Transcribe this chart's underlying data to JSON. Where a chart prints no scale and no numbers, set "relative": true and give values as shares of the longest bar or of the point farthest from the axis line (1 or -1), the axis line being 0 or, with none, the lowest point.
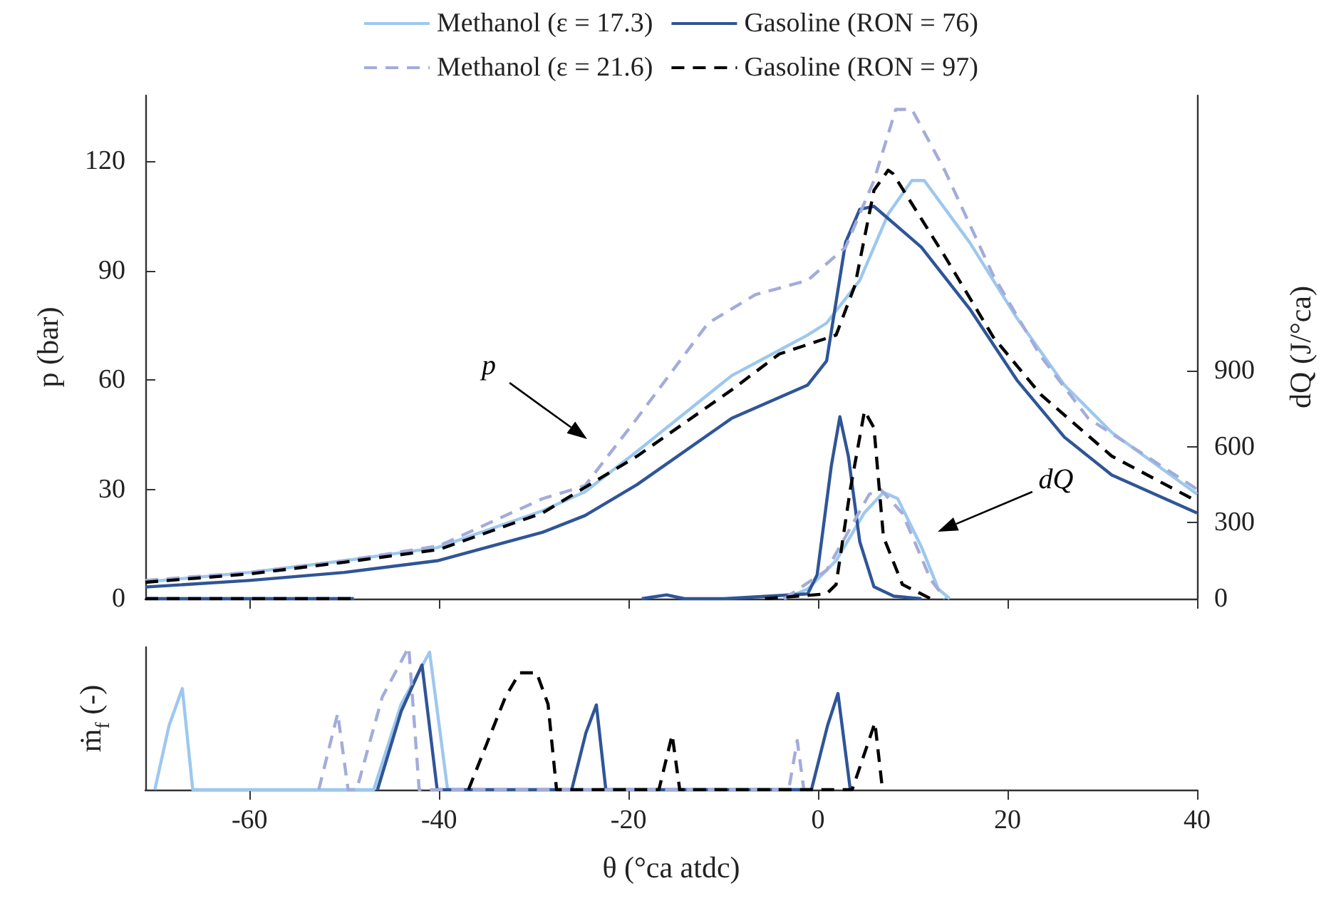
{
  "chart_data": [
    {
      "type": "line",
      "ylabel": "p (bar)",
      "y2label": "dQ (J/°ca)",
      "xlim": [
        -71,
        40
      ],
      "xticks": [
        -60,
        -40,
        -20,
        0,
        20,
        40
      ],
      "ylim": [
        0,
        138
      ],
      "yticks": [
        0,
        30,
        60,
        90,
        120
      ],
      "y2lim": [
        0,
        1986
      ],
      "y2ticks": [
        0,
        300,
        600,
        900
      ],
      "tick_labels": "y",
      "grid": false,
      "legend": "top",
      "marker": "none",
      "annotations": [
        "p",
        "dQ"
      ],
      "series": [
        {
          "name": "Methanol (ε = 17.3)",
          "color": "#9dc8ee",
          "line_style": "solid",
          "x": [
            -71,
            -60,
            -50,
            -40.2,
            -29.1,
            -24.6,
            -19.1,
            -9.1,
            -1.1,
            0.9,
            4.4,
            7.4,
            9.9,
            11.2,
            16,
            21,
            26,
            31,
            40
          ],
          "values": [
            4.6,
            7.2,
            10.4,
            14,
            24.1,
            29.3,
            40.4,
            61.2,
            72.3,
            75.6,
            87.3,
            105.5,
            114.7,
            114.7,
            97.7,
            76.9,
            58.6,
            45.6,
            28.7
          ]
        },
        {
          "name": "Gasoline (RON = 76)",
          "color": "#2f5597",
          "line_style": "solid",
          "x": [
            -71,
            -60,
            -50,
            -40.2,
            -29.1,
            -24.6,
            -19.1,
            -9.1,
            -1.1,
            0.9,
            2.9,
            4.4,
            5.9,
            10.9,
            16,
            21,
            26,
            31,
            40
          ],
          "values": [
            3.2,
            5,
            7.2,
            10.4,
            18.2,
            22.8,
            31.3,
            49.5,
            58.6,
            65.2,
            97.7,
            106.8,
            107.6,
            96.4,
            79.5,
            59.9,
            44.3,
            33.9,
            23.5
          ]
        },
        {
          "name": "Methanol (ε = 21.6)",
          "color": "#a3acd9",
          "line_style": "dashed",
          "x": [
            -71,
            -60,
            -50,
            -40,
            -29.1,
            -24.6,
            -19.1,
            -11.6,
            -6.6,
            -1.1,
            2.9,
            5.9,
            8.2,
            9.9,
            13.4,
            18.5,
            23.5,
            28.5,
            40
          ],
          "values": [
            5,
            7.2,
            10.4,
            14.5,
            27.4,
            31,
            49.5,
            75.6,
            83.4,
            87.3,
            96.4,
            114.7,
            134.2,
            134.2,
            117.3,
            88.6,
            66.5,
            49.5,
            30
          ]
        },
        {
          "name": "Gasoline (RON = 97)",
          "color": "#000000",
          "line_style": "dashed",
          "x": [
            -71,
            -60,
            -50,
            -40,
            -29.1,
            -19.1,
            -9.1,
            -4.1,
            1.9,
            3.9,
            5.9,
            7.4,
            7.9,
            13.4,
            18.5,
            23.5,
            31,
            40
          ],
          "values": [
            4.5,
            6.8,
            10,
            13.5,
            23.5,
            39.1,
            57.3,
            67.1,
            72.3,
            86,
            112,
            117.5,
            116.6,
            93.8,
            71.7,
            56,
            39.1,
            26.7
          ]
        },
        {
          "color": "#9dc8ee",
          "line_style": "solid",
          "axis": "y2",
          "x": [
            -71,
            -49,
            -30,
            -3.6,
            -1.1,
            1.9,
            4.9,
            6.9,
            8.4,
            10.9,
            12.7,
            13.9
          ],
          "values": [
            0,
            0,
            null,
            0,
            38,
            150,
            340,
            420,
            395,
            205,
            38,
            0
          ]
        },
        {
          "color": "#2f5597",
          "line_style": "solid",
          "axis": "y2",
          "x": [
            -71,
            -49,
            -30,
            -18.6,
            -16,
            -14.1,
            -10,
            -1.1,
            -0.1,
            1.4,
            2.3,
            3.2,
            4.4,
            5.9,
            8,
            10.9
          ],
          "values": [
            0,
            0,
            null,
            0,
            15,
            0,
            0,
            19,
            94,
            525,
            718,
            562,
            225,
            47,
            10,
            0
          ]
        },
        {
          "color": "#a3acd9",
          "line_style": "dashed",
          "axis": "y2",
          "x": [
            -71,
            -49,
            -30,
            -3.6,
            0.9,
            5.4,
            6.6,
            8.9,
            11.9,
            13.4
          ],
          "values": [
            0,
            0,
            null,
            0,
            112,
            412,
            431,
            337,
            75,
            0
          ]
        },
        {
          "color": "#000000",
          "line_style": "dashed",
          "axis": "y2",
          "x": [
            -71,
            -49,
            -30,
            -5.6,
            0.9,
            1.9,
            3.4,
            4.9,
            5.9,
            6.9,
            8.9,
            11.9
          ],
          "values": [
            0,
            0,
            null,
            0,
            19,
            56,
            431,
            741,
            675,
            244,
            56,
            0
          ]
        }
      ]
    },
    {
      "type": "line",
      "relative": true,
      "xlabel": "θ (°ca atdc)",
      "ylabel": "ṁ$_{f}$ (-)",
      "xlim": [
        -71,
        40
      ],
      "xticks": [
        -60,
        -40,
        -20,
        0,
        20,
        40
      ],
      "tick_labels": "x",
      "grid": false,
      "legend": false,
      "marker": "none",
      "series": [
        {
          "color": "#9dc8ee",
          "line_style": "solid",
          "x": [
            -70,
            -68.5,
            -67.1,
            -66,
            -46.9,
            -44,
            -41,
            -39.1,
            -2
          ],
          "values": [
            0,
            0.45,
            0.71,
            0,
            0,
            0.6,
            0.965,
            0,
            0
          ]
        },
        {
          "color": "#2f5597",
          "line_style": "solid",
          "x": [
            -46.5,
            -44,
            -41.8,
            -40.2,
            -26,
            -24.5,
            -23.4,
            -22.4,
            -0.7,
            1,
            2.1,
            3.4
          ],
          "values": [
            0,
            0.55,
            0.875,
            0,
            0,
            0.4,
            0.595,
            0,
            0,
            0.45,
            0.675,
            0
          ]
        },
        {
          "color": "#a3acd9",
          "line_style": "dashed",
          "x": [
            -52.7,
            -50.7,
            -49.6,
            -48.7,
            -46,
            -43.2,
            -42.1,
            -3.1,
            -2.2,
            -1.5
          ],
          "values": [
            0,
            0.535,
            0,
            0,
            0.65,
            1,
            0,
            0,
            0.345,
            0
          ]
        },
        {
          "color": "#000000",
          "line_style": "dashed",
          "x": [
            -36.9,
            -33,
            -31.5,
            -29.7,
            -28.5,
            -27.6,
            -16.8,
            -15.4,
            -14.6,
            3.6,
            6,
            6.8
          ],
          "values": [
            0,
            0.65,
            0.82,
            0.82,
            0.6,
            0,
            0,
            0.385,
            0,
            0,
            0.47,
            0
          ]
        }
      ]
    }
  ]
}
